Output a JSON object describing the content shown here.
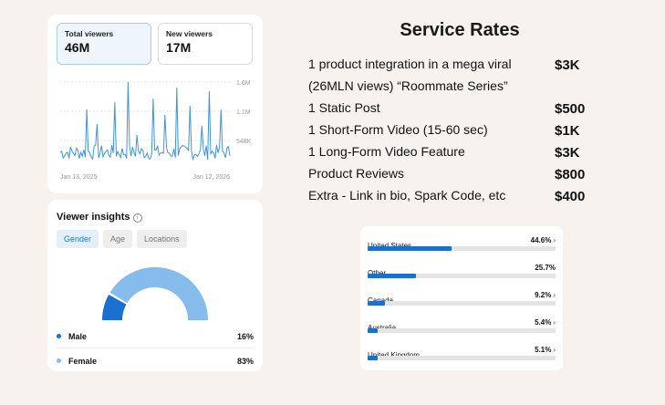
{
  "viewers": {
    "total": {
      "label": "Total viewers",
      "value": "46M"
    },
    "new": {
      "label": "New viewers",
      "value": "17M"
    },
    "chart": {
      "y_ticks": [
        "1.6M",
        "1.1M",
        "548K"
      ],
      "start_date": "Jan 13, 2025",
      "end_date": "Jan 12, 2026",
      "line_color": "#3f93dc"
    }
  },
  "insights": {
    "title": "Viewer insights",
    "info_glyph": "i",
    "tabs": [
      "Gender",
      "Age",
      "Locations"
    ],
    "gender": [
      {
        "label": "Male",
        "value": "16%",
        "fraction": 0.16,
        "color": "#1b6fd1"
      },
      {
        "label": "Female",
        "value": "83%",
        "fraction": 0.83,
        "color": "#85bcec"
      }
    ]
  },
  "rates": {
    "title": "Service Rates",
    "items": [
      {
        "line1": "1 product integration in a mega viral",
        "line2": "(26MLN views) “Roommate Series”",
        "price": "$3K"
      },
      {
        "line1": "1 Static Post",
        "price": "$500"
      },
      {
        "line1": "1 Short-Form Video (15-60 sec)",
        "price": "$1K"
      },
      {
        "line1": "1 Long-Form Video Feature",
        "price": "$3K"
      },
      {
        "line1": "Product Reviews",
        "price": "$800"
      },
      {
        "line1": "Extra - Link in bio, Spark Code, etc",
        "price": "$400"
      }
    ]
  },
  "countries": {
    "chevron": "›",
    "items": [
      {
        "name": "United States",
        "pct": "44.6%",
        "fraction": 0.446,
        "chevron": true
      },
      {
        "name": "Other",
        "pct": "25.7%",
        "fraction": 0.257,
        "chevron": false
      },
      {
        "name": "Canada",
        "pct": "9.2%",
        "fraction": 0.092,
        "chevron": true
      },
      {
        "name": "Australia",
        "pct": "5.4%",
        "fraction": 0.054,
        "chevron": true
      },
      {
        "name": "United Kingdom",
        "pct": "5.1%",
        "fraction": 0.051,
        "chevron": true
      }
    ]
  },
  "colors": {
    "accent": "#1b6fd1",
    "light_accent": "#85bcec",
    "background": "#f8f2ef"
  }
}
